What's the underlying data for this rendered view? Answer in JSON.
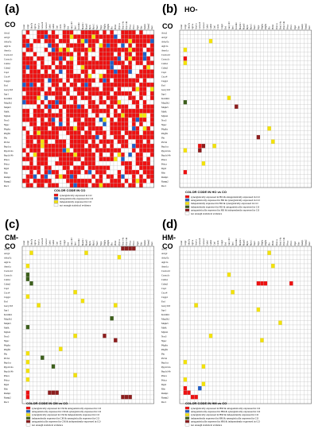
{
  "colors": {
    "red": "#ee1111",
    "blue": "#1f5fc8",
    "yellow": "#f4e30a",
    "green": "#3d5f1c",
    "darkred": "#8c1d1d",
    "grid": "#bdbdbd",
    "border": "#555555"
  },
  "genes": [
    "Acta2",
    "Actg2",
    "Adcy5a",
    "Agtr1a",
    "Avpr1a",
    "Cacna1d",
    "Cacna1c",
    "Calm1",
    "Calm2",
    "Cap1",
    "Cxcr4",
    "Cspg4",
    "Fzd",
    "Gucy1b3",
    "Itpr1",
    "Kcnmb1",
    "Map2k1",
    "Mapk3",
    "Mylk",
    "Myh11",
    "Nos3",
    "Nppc",
    "Pdgfra",
    "Pdgfrb",
    "Pln",
    "Plcb4",
    "Ppp1ca",
    "Ppp1r14a",
    "Ppp1r14b",
    "Prkca",
    "Prkcz",
    "Rgs2",
    "Rho",
    "Ramp1",
    "Ramp2",
    "Rac1"
  ],
  "panels": [
    {
      "letter": "(a)",
      "title": "CO",
      "legend_title": "COLOR CODE IN CO",
      "legend": [
        {
          "color": "red",
          "text": "synergistically expressed in CO"
        },
        {
          "color": "blue",
          "text": "antagonistically expressed in CO"
        },
        {
          "color": "yellow",
          "text": "independently expressed in CO"
        },
        {
          "color": "white",
          "text": "not enough statistical evidence"
        }
      ]
    },
    {
      "letter": "(b)",
      "title": "HO-CO",
      "legend_title": "COLOR CODE IN HO vs CO",
      "legend": [
        {
          "color": "red",
          "text": "synergistically expressed in HO & antagonistically expressed in CO"
        },
        {
          "color": "blue",
          "text": "antagonistically expressed in HO & synergistically expressed in CO"
        },
        {
          "color": "yellow",
          "text": "independently expressed in HO & synergistically expressed in CO"
        },
        {
          "color": "green",
          "text": "independently expressed in HO & antagonistically expressed in CO"
        },
        {
          "color": "darkred",
          "text": "antagonistically expressed in HO & independently expressed in CO"
        },
        {
          "color": "white",
          "text": "not enough statistical evidence"
        }
      ]
    },
    {
      "letter": "(c)",
      "title": "CM-CO",
      "legend_title": "COLOR CODE IN CM vs CO",
      "legend": [
        {
          "color": "red",
          "text": "synergistically expressed in CM & antagonistically expressed in CO"
        },
        {
          "color": "blue",
          "text": "antagonistically expressed in CM & synergistically expressed in CO"
        },
        {
          "color": "yellow",
          "text": "synergistically expressed in CM & independently expressed in CO"
        },
        {
          "color": "green",
          "text": "independently expressed in CM & synergistically expressed in CO"
        },
        {
          "color": "darkred",
          "text": "antagonistically expressed in CM & independently expressed in CO"
        },
        {
          "color": "white",
          "text": "not enough statistical evidence"
        }
      ]
    },
    {
      "letter": "(d)",
      "title": "HM-CO",
      "legend_title": "COLOR CODE IN HM vs CO",
      "legend": [
        {
          "color": "red",
          "text": "synergistically expressed in HM & antagonistically expressed in CO"
        },
        {
          "color": "blue",
          "text": "antagonistically expressed in HM & synergistically expressed in CO"
        },
        {
          "color": "yellow",
          "text": "synergistically expressed in HM & independently expressed in CO"
        },
        {
          "color": "green",
          "text": "independently expressed in HM & synergistically expressed in CO"
        },
        {
          "color": "darkred",
          "text": "antagonistically expressed in HM & independently expressed in CO"
        },
        {
          "color": "white",
          "text": "not enough statistical evidence"
        }
      ]
    }
  ]
}
